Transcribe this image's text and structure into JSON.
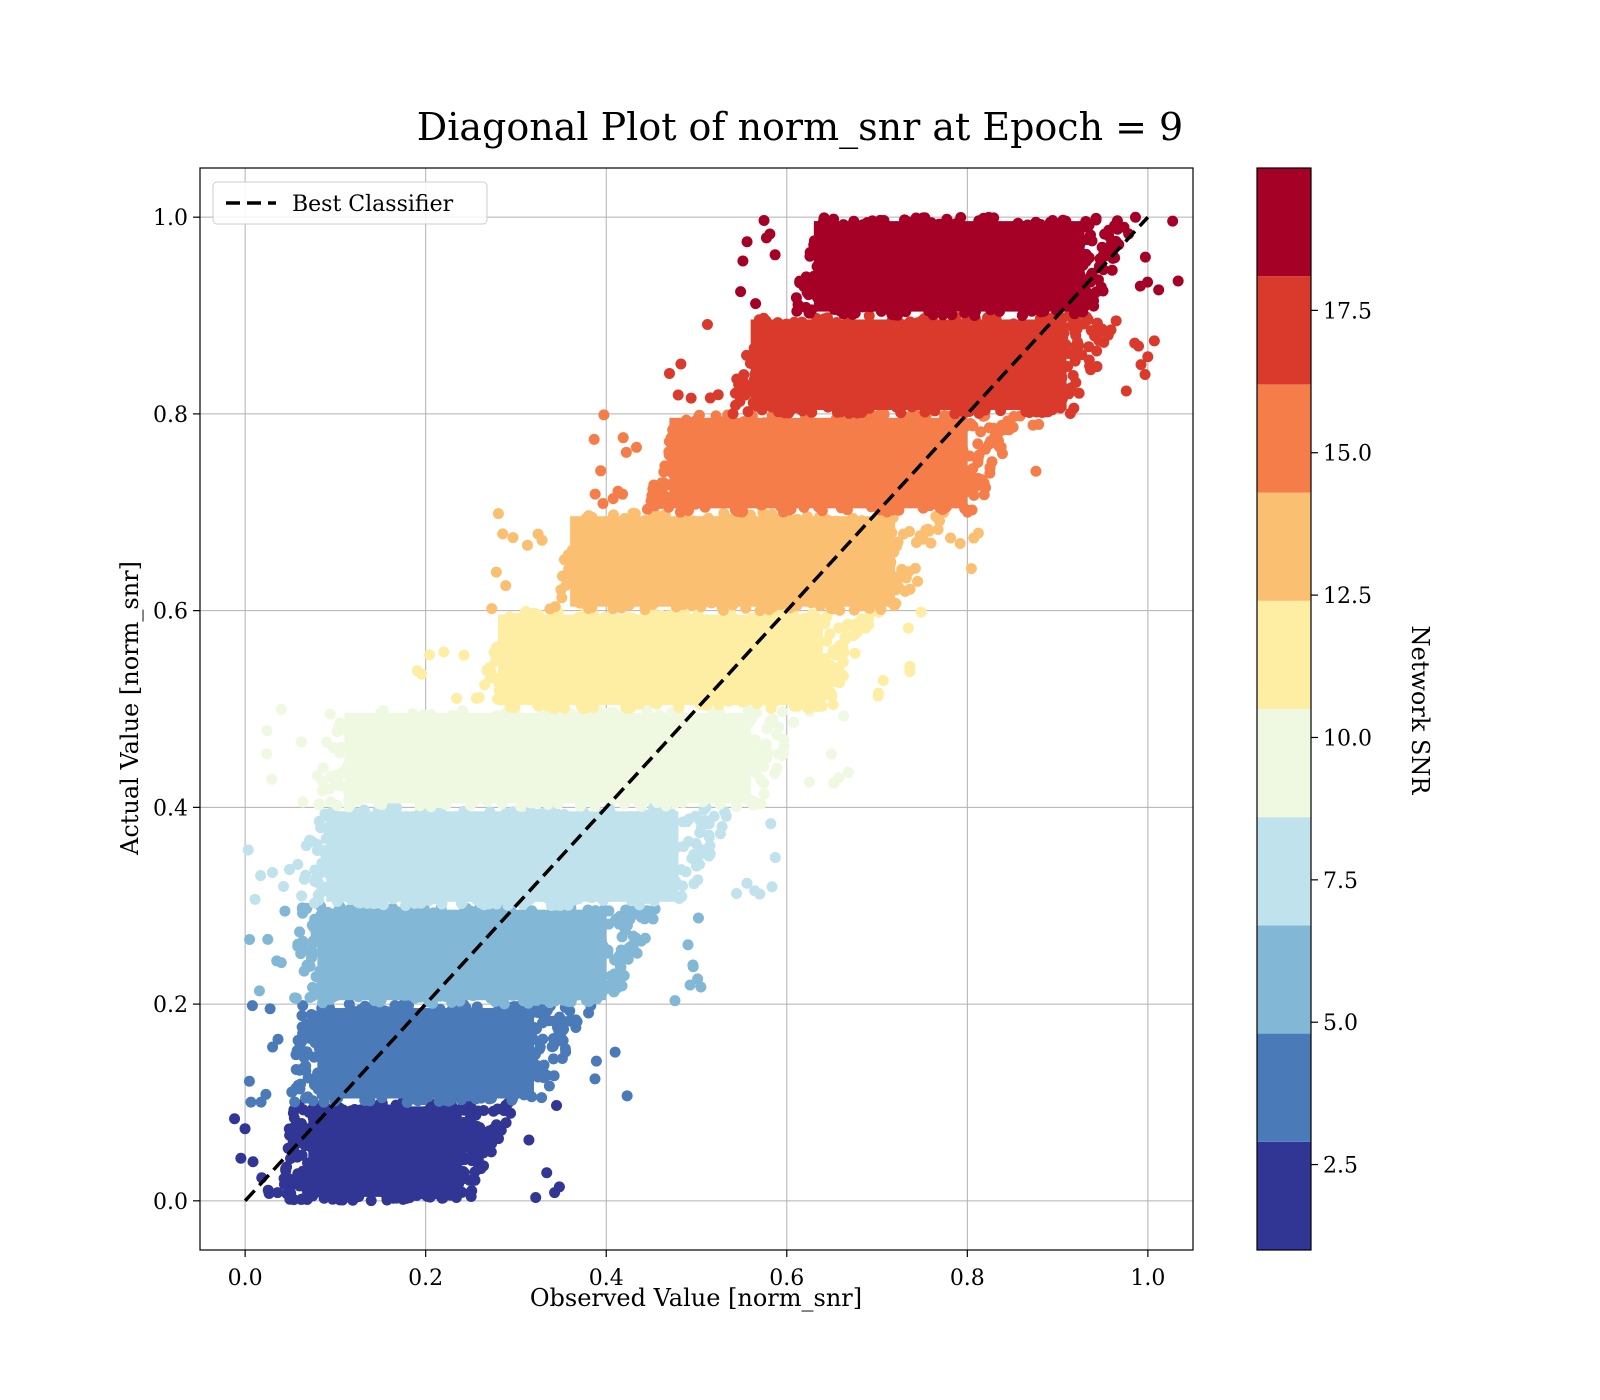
{
  "chart_data": {
    "type": "scatter",
    "title": "Diagonal Plot of norm_snr at Epoch = 9",
    "xlabel": "Observed Value [norm_snr]",
    "ylabel": "Actual Value [norm_snr]",
    "xlim": [
      -0.05,
      1.05
    ],
    "ylim": [
      -0.05,
      1.05
    ],
    "x_ticks": [
      "0.0",
      "0.2",
      "0.4",
      "0.6",
      "0.8",
      "1.0"
    ],
    "y_ticks": [
      "0.0",
      "0.2",
      "0.4",
      "0.6",
      "0.8",
      "1.0"
    ],
    "grid": true,
    "legend": {
      "placement": "top-left",
      "entries": [
        {
          "label": "Best Classifier",
          "style": "dashed",
          "color": "#000000"
        }
      ]
    },
    "reference_line": {
      "label": "Best Classifier",
      "x": [
        0,
        1
      ],
      "y": [
        0,
        1
      ],
      "style": "dashed"
    },
    "colorbar": {
      "label": "Network SNR",
      "range": [
        1.0,
        20.0
      ],
      "ticks": [
        "2.5",
        "5.0",
        "7.5",
        "10.0",
        "12.5",
        "15.0",
        "17.5"
      ],
      "tick_values": [
        2.5,
        5.0,
        7.5,
        10.0,
        12.5,
        15.0,
        17.5
      ],
      "colors": [
        "#313695",
        "#4a7ab7",
        "#82b7d6",
        "#bfe2ec",
        "#eff8e0",
        "#fdeea4",
        "#fbbf72",
        "#f47d4a",
        "#d93a2c",
        "#a50026"
      ]
    },
    "bands": [
      {
        "y_range": [
          0.0,
          0.1
        ],
        "x_range": [
          0.04,
          0.3
        ],
        "color": "#313695"
      },
      {
        "y_range": [
          0.1,
          0.2
        ],
        "x_range": [
          0.05,
          0.38
        ],
        "color": "#4a7ab7"
      },
      {
        "y_range": [
          0.2,
          0.3
        ],
        "x_range": [
          0.05,
          0.46
        ],
        "color": "#82b7d6"
      },
      {
        "y_range": [
          0.3,
          0.4
        ],
        "x_range": [
          0.06,
          0.54
        ],
        "color": "#bfe2ec"
      },
      {
        "y_range": [
          0.4,
          0.5
        ],
        "x_range": [
          0.08,
          0.62
        ],
        "color": "#eff8e0"
      },
      {
        "y_range": [
          0.5,
          0.6
        ],
        "x_range": [
          0.25,
          0.7
        ],
        "color": "#fdeea4"
      },
      {
        "y_range": [
          0.6,
          0.7
        ],
        "x_range": [
          0.33,
          0.78
        ],
        "color": "#fbbf72"
      },
      {
        "y_range": [
          0.7,
          0.8
        ],
        "x_range": [
          0.44,
          0.86
        ],
        "color": "#f47d4a"
      },
      {
        "y_range": [
          0.8,
          0.9
        ],
        "x_range": [
          0.53,
          0.97
        ],
        "color": "#d93a2c"
      },
      {
        "y_range": [
          0.9,
          1.0
        ],
        "x_range": [
          0.6,
          0.99
        ],
        "color": "#a50026"
      }
    ]
  }
}
